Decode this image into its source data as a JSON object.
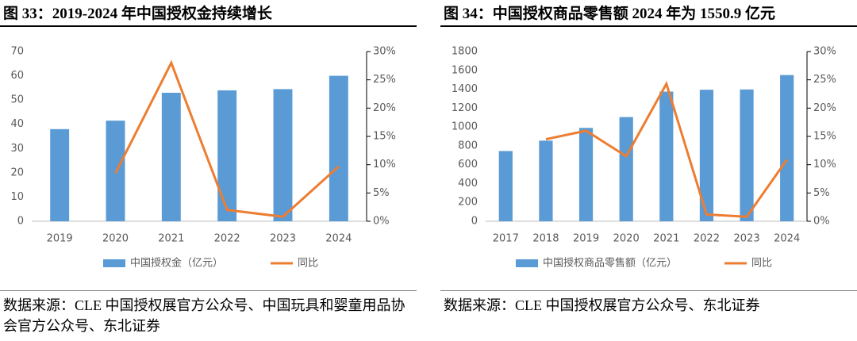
{
  "chart_data": [
    {
      "type": "bar",
      "title": "图 33：2019-2024 年中国授权金持续增长",
      "categories": [
        "2019",
        "2020",
        "2021",
        "2022",
        "2023",
        "2024"
      ],
      "series": [
        {
          "name": "中国授权金（亿元）",
          "color": "#5b9bd5",
          "values": [
            38,
            41.5,
            53,
            54,
            54.5,
            60
          ]
        },
        {
          "name": "同比",
          "color": "#ed7d31",
          "type": "line",
          "axis": "y2",
          "values": [
            null,
            8.5,
            28,
            2,
            0.8,
            9.7
          ]
        }
      ],
      "ylim": [
        0,
        70
      ],
      "yticks": [
        0,
        10,
        20,
        30,
        40,
        50,
        60,
        70
      ],
      "y2lim": [
        0,
        30
      ],
      "y2ticks": [
        {
          "value": 0,
          "label": "0%"
        },
        {
          "value": 5,
          "label": "5%"
        },
        {
          "value": 10,
          "label": "10%"
        },
        {
          "value": 15,
          "label": "15%"
        },
        {
          "value": 20,
          "label": "20%"
        },
        {
          "value": 25,
          "label": "25%"
        },
        {
          "value": 30,
          "label": "30%"
        }
      ],
      "legend": "bottom",
      "source": "数据来源：CLE 中国授权展官方公众号、中国玩具和婴童用品协会官方公众号、东北证券"
    },
    {
      "type": "bar",
      "title": "图 34：中国授权商品零售额 2024 年为 1550.9 亿元",
      "categories": [
        "2017",
        "2018",
        "2019",
        "2020",
        "2021",
        "2022",
        "2023",
        "2024"
      ],
      "series": [
        {
          "name": "中国授权商品零售额（亿元）",
          "color": "#5b9bd5",
          "values": [
            745,
            855,
            990,
            1105,
            1375,
            1395,
            1398,
            1550.9
          ]
        },
        {
          "name": "同比",
          "color": "#ed7d31",
          "type": "line",
          "axis": "y2",
          "values": [
            null,
            14.5,
            16,
            11.5,
            24.3,
            1.2,
            0.8,
            10.9
          ]
        }
      ],
      "ylim": [
        0,
        1800
      ],
      "yticks": [
        0,
        200,
        400,
        600,
        800,
        1000,
        1200,
        1400,
        1600,
        1800
      ],
      "y2lim": [
        0,
        30
      ],
      "y2ticks": [
        {
          "value": 0,
          "label": "0%"
        },
        {
          "value": 5,
          "label": "5%"
        },
        {
          "value": 10,
          "label": "10%"
        },
        {
          "value": 15,
          "label": "15%"
        },
        {
          "value": 20,
          "label": "20%"
        },
        {
          "value": 25,
          "label": "25%"
        },
        {
          "value": 30,
          "label": "30%"
        }
      ],
      "legend": "bottom",
      "source": "数据来源：CLE 中国授权展官方公众号、东北证券"
    }
  ]
}
